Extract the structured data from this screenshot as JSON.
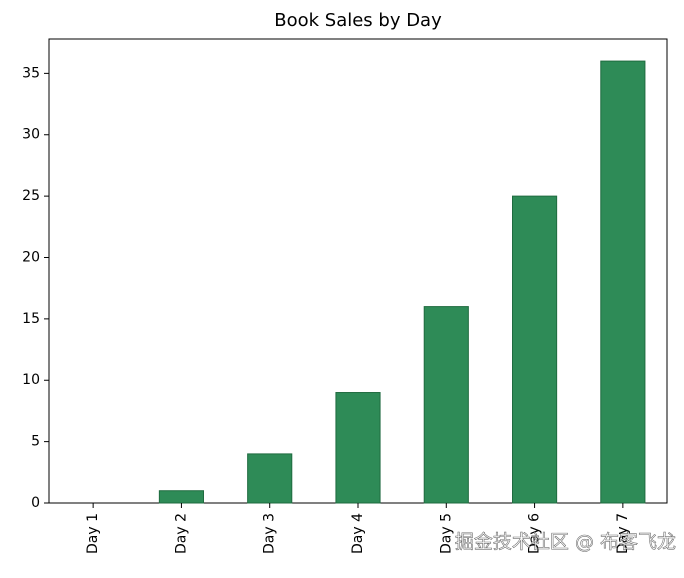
{
  "chart_data": {
    "type": "bar",
    "title": "Book Sales by Day",
    "categories": [
      "Day 1",
      "Day 2",
      "Day 3",
      "Day 4",
      "Day 5",
      "Day 6",
      "Day 7"
    ],
    "values": [
      0,
      1,
      4,
      9,
      16,
      25,
      36
    ],
    "color": "#2e8b57",
    "edgecolor": "#1f6b3f",
    "ylim": [
      0,
      37.8
    ],
    "yticks": [
      0,
      5,
      10,
      15,
      20,
      25,
      30,
      35
    ],
    "watermark": "掘金技术社区 @ 布客飞龙"
  }
}
